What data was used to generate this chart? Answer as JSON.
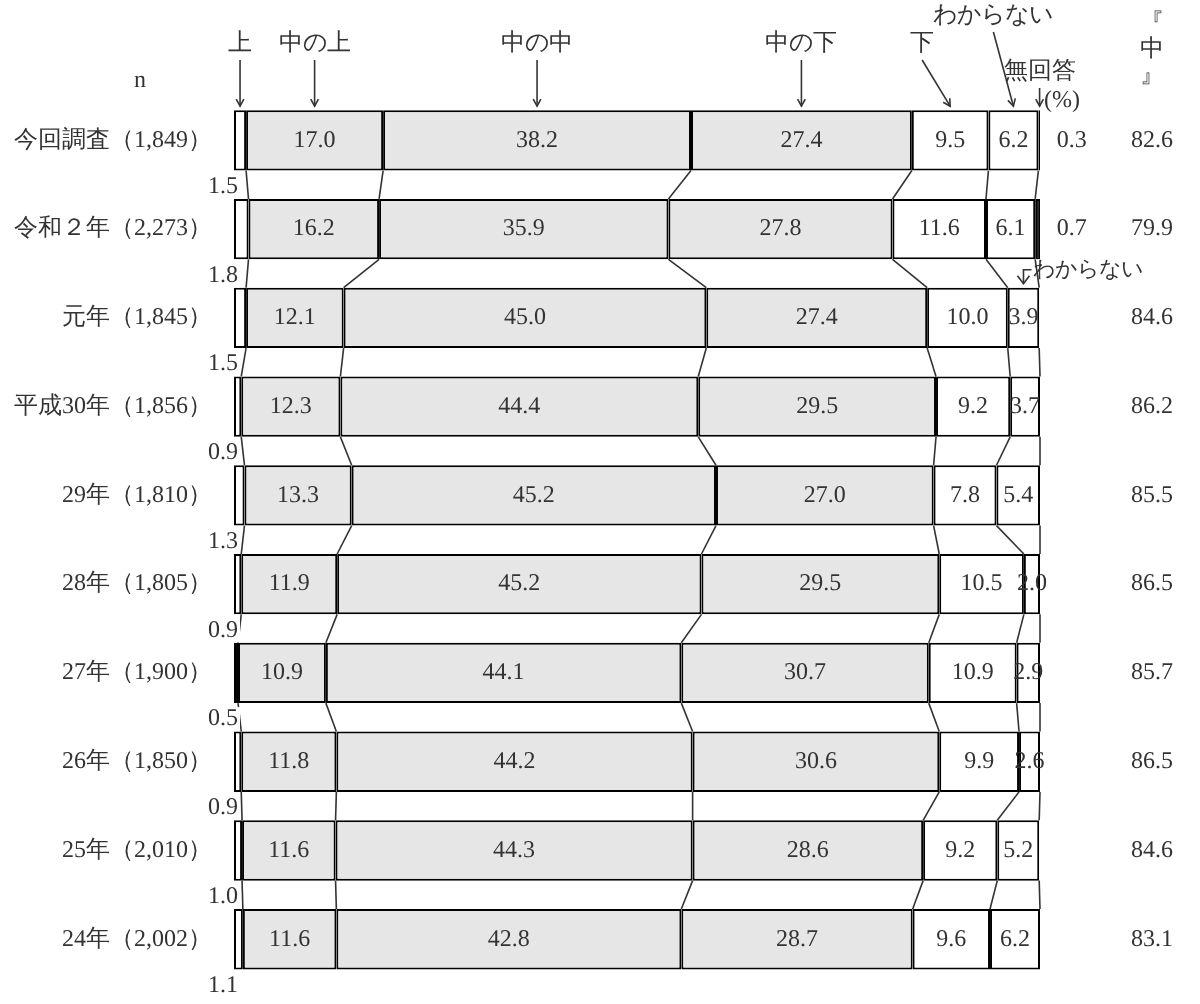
{
  "chart_data": {
    "type": "bar",
    "orientation": "horizontal",
    "stacked": true,
    "tick_labels": "y",
    "categories": [
      "今回調査（1,849）",
      "令和２年（2,273）",
      "元年（1,845）",
      "平成30年（1,856）",
      "29年（1,810）",
      "28年（1,805）",
      "27年（1,900）",
      "26年（1,850）",
      "25年（2,010）",
      "24年（2,002）"
    ],
    "xlim": [
      0,
      100
    ],
    "series": [
      {
        "name": "上",
        "color": "#ffffff",
        "values": [
          1.5,
          1.8,
          1.5,
          0.9,
          1.3,
          0.9,
          0.5,
          0.9,
          1.0,
          1.1
        ],
        "value_labels": [
          "1.5",
          "1.8",
          "1.5",
          "0.9",
          "1.3",
          "0.9",
          "0.5",
          "0.9",
          "1.0",
          "1.1"
        ]
      },
      {
        "name": "中の上",
        "color": "#e6e6e6",
        "values": [
          17.0,
          16.2,
          12.1,
          12.3,
          13.3,
          11.9,
          10.9,
          11.8,
          11.6,
          11.6
        ],
        "value_labels": [
          "17.0",
          "16.2",
          "12.1",
          "12.3",
          "13.3",
          "11.9",
          "10.9",
          "11.8",
          "11.6",
          "11.6"
        ]
      },
      {
        "name": "中の中",
        "color": "#e6e6e6",
        "values": [
          38.2,
          35.9,
          45.0,
          44.4,
          45.2,
          45.2,
          44.1,
          44.2,
          44.3,
          42.8
        ],
        "value_labels": [
          "38.2",
          "35.9",
          "45.0",
          "44.4",
          "45.2",
          "45.2",
          "44.1",
          "44.2",
          "44.3",
          "42.8"
        ]
      },
      {
        "name": "中の下",
        "color": "#e6e6e6",
        "values": [
          27.4,
          27.8,
          27.4,
          29.5,
          27.0,
          29.5,
          30.7,
          30.6,
          28.6,
          28.7
        ],
        "value_labels": [
          "27.4",
          "27.8",
          "27.4",
          "29.5",
          "27.0",
          "29.5",
          "30.7",
          "30.6",
          "28.6",
          "28.7"
        ]
      },
      {
        "name": "下",
        "color": "#ffffff",
        "values": [
          9.5,
          11.6,
          10.0,
          9.2,
          7.8,
          10.5,
          10.9,
          9.9,
          9.2,
          9.6
        ],
        "value_labels": [
          "9.5",
          "11.6",
          "10.0",
          "9.2",
          "7.8",
          "10.5",
          "10.9",
          "9.9",
          "9.2",
          "9.6"
        ]
      },
      {
        "name": "わからない",
        "color": "#ffffff",
        "values": [
          6.2,
          6.1,
          3.9,
          3.7,
          5.4,
          2.0,
          2.9,
          2.6,
          5.2,
          6.2
        ],
        "value_labels": [
          "6.2",
          "6.1",
          "3.9",
          "3.7",
          "5.4",
          "2.0",
          "2.9",
          "2.6",
          "5.2",
          "6.2"
        ]
      },
      {
        "name": "無回答",
        "color": "#000000",
        "values": [
          0.3,
          0.7,
          null,
          null,
          null,
          null,
          null,
          null,
          null,
          null
        ],
        "value_labels": [
          "0.3",
          "0.7",
          null,
          null,
          null,
          null,
          null,
          null,
          null,
          null
        ]
      }
    ],
    "annotations": [
      "n",
      "(%)",
      "『中』",
      "わからない",
      "82.6",
      "79.9",
      "84.6",
      "86.2",
      "85.5",
      "86.5",
      "85.7",
      "86.5",
      "84.6",
      "83.1"
    ]
  }
}
